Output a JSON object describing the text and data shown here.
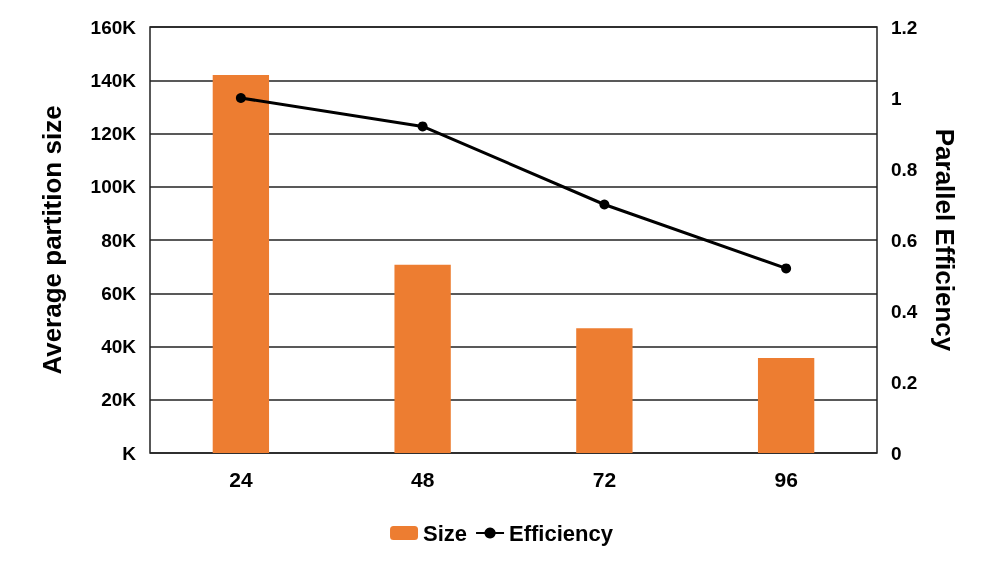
{
  "chart_data": {
    "type": "bar",
    "xlabel": null,
    "ylabel": "Average partition size",
    "y2label": "Parallel Efficiency",
    "categories": [
      "24",
      "48",
      "72",
      "96"
    ],
    "series": [
      {
        "name": "Size",
        "color": "#ed7d31",
        "values": [
          142000,
          70700,
          46900,
          35700
        ]
      },
      {
        "name": "Efficiency",
        "type": "line",
        "axis": "y2",
        "color": "#000000",
        "values": [
          1.0,
          0.92,
          0.7,
          0.52
        ]
      }
    ],
    "ylim": [
      0,
      160000
    ],
    "yticks": [
      {
        "value": 0,
        "label": "K"
      },
      {
        "value": 20000,
        "label": "20K"
      },
      {
        "value": 40000,
        "label": "40K"
      },
      {
        "value": 60000,
        "label": "60K"
      },
      {
        "value": 80000,
        "label": "80K"
      },
      {
        "value": 100000,
        "label": "100K"
      },
      {
        "value": 120000,
        "label": "120K"
      },
      {
        "value": 140000,
        "label": "140K"
      },
      {
        "value": 160000,
        "label": "160K"
      }
    ],
    "y2lim": [
      0,
      1.2
    ],
    "y2ticks": [
      0,
      0.2,
      0.4,
      0.6,
      0.8,
      1,
      1.2
    ],
    "grid": "y",
    "legend": "bottom",
    "marker": "circle",
    "line_style": "solid"
  }
}
